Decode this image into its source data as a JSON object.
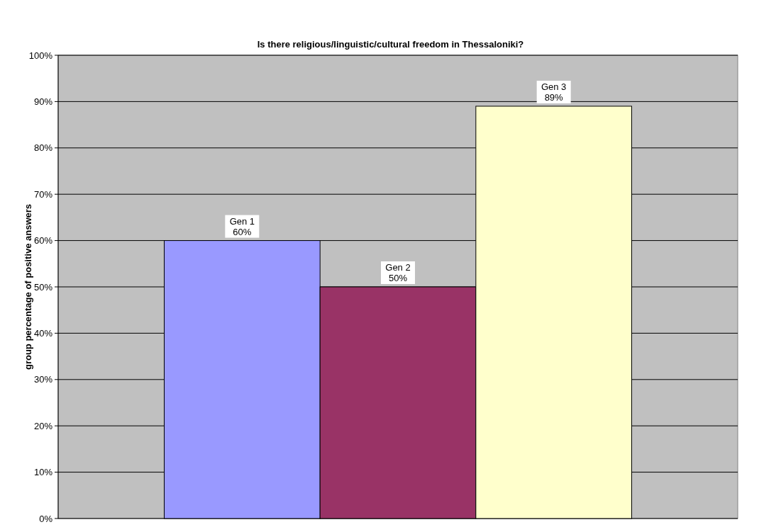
{
  "chart_data": {
    "type": "bar",
    "title": "Is there religious/linguistic/cultural freedom in Thessaloniki?",
    "ylabel": "group percentage of positive answers",
    "categories": [
      null
    ],
    "series": [
      {
        "name": "Gen 1",
        "color": "#9999ff",
        "values": [
          60
        ],
        "value_labels": [
          "60%"
        ]
      },
      {
        "name": "Gen 2",
        "color": "#993366",
        "values": [
          50
        ],
        "value_labels": [
          "50%"
        ]
      },
      {
        "name": "Gen 3",
        "color": "#ffffcc",
        "values": [
          89
        ],
        "value_labels": [
          "89%"
        ]
      }
    ],
    "ylim": [
      0,
      100
    ],
    "yticks": [
      {
        "value": 0,
        "label": "0%"
      },
      {
        "value": 10,
        "label": "10%"
      },
      {
        "value": 20,
        "label": "20%"
      },
      {
        "value": 30,
        "label": "30%"
      },
      {
        "value": 40,
        "label": "40%"
      },
      {
        "value": 50,
        "label": "50%"
      },
      {
        "value": 60,
        "label": "60%"
      },
      {
        "value": 70,
        "label": "70%"
      },
      {
        "value": 80,
        "label": "80%"
      },
      {
        "value": 90,
        "label": "90%"
      },
      {
        "value": 100,
        "label": "100%"
      }
    ],
    "grid": "y"
  }
}
